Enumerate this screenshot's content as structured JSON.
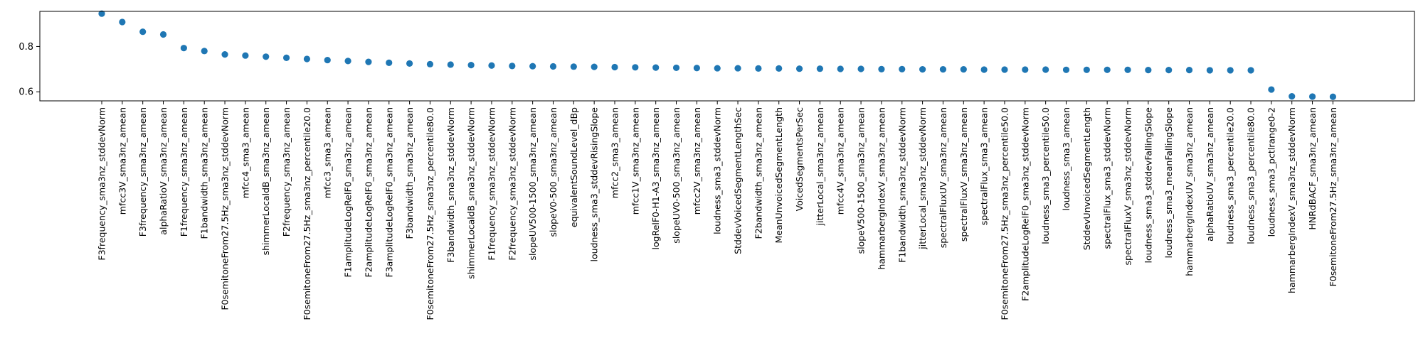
{
  "chart_data": {
    "type": "scatter",
    "title": "",
    "xlabel": "",
    "ylabel": "",
    "ylim": [
      0.56,
      0.955
    ],
    "yticks": [
      0.6,
      0.8
    ],
    "ytick_labels": [
      "0.6",
      "0.8"
    ],
    "grid": false,
    "marker_color": "#1f77b4",
    "categories": [
      "F3frequency_sma3nz_stddevNorm",
      "mfcc3V_sma3nz_amean",
      "F3frequency_sma3nz_amean",
      "alphaRatioV_sma3nz_amean",
      "F1frequency_sma3nz_amean",
      "F1bandwidth_sma3nz_amean",
      "F0semitoneFrom27.5Hz_sma3nz_stddevNorm",
      "mfcc4_sma3_amean",
      "shimmerLocaldB_sma3nz_amean",
      "F2frequency_sma3nz_amean",
      "F0semitoneFrom27.5Hz_sma3nz_percentile20.0",
      "mfcc3_sma3_amean",
      "F1amplitudeLogRelF0_sma3nz_amean",
      "F2amplitudeLogRelF0_sma3nz_amean",
      "F3amplitudeLogRelF0_sma3nz_amean",
      "F3bandwidth_sma3nz_amean",
      "F0semitoneFrom27.5Hz_sma3nz_percentile80.0",
      "F3bandwidth_sma3nz_stddevNorm",
      "shimmerLocaldB_sma3nz_stddevNorm",
      "F1frequency_sma3nz_stddevNorm",
      "F2frequency_sma3nz_stddevNorm",
      "slopeUV500-1500_sma3nz_amean",
      "slopeV0-500_sma3nz_amean",
      "equivalentSoundLevel_dBp",
      "loudness_sma3_stddevRisingSlope",
      "mfcc2_sma3_amean",
      "mfcc1V_sma3nz_amean",
      "logRelF0-H1-A3_sma3nz_amean",
      "slopeUV0-500_sma3nz_amean",
      "mfcc2V_sma3nz_amean",
      "loudness_sma3_stddevNorm",
      "StddevVoicedSegmentLengthSec",
      "F2bandwidth_sma3nz_amean",
      "MeanUnvoicedSegmentLength",
      "VoicedSegmentsPerSec",
      "jitterLocal_sma3nz_amean",
      "mfcc4V_sma3nz_amean",
      "slopeV500-1500_sma3nz_amean",
      "hammarbergIndexV_sma3nz_amean",
      "F1bandwidth_sma3nz_stddevNorm",
      "jitterLocal_sma3nz_stddevNorm",
      "spectralFluxUV_sma3nz_amean",
      "spectralFluxV_sma3nz_amean",
      "spectralFlux_sma3_amean",
      "F0semitoneFrom27.5Hz_sma3nz_percentile50.0",
      "F2amplitudeLogRelF0_sma3nz_stddevNorm",
      "loudness_sma3_percentile50.0",
      "loudness_sma3_amean",
      "StddevUnvoicedSegmentLength",
      "spectralFlux_sma3_stddevNorm",
      "spectralFluxV_sma3nz_stddevNorm",
      "loudness_sma3_stddevFallingSlope",
      "loudness_sma3_meanFallingSlope",
      "hammarbergIndexUV_sma3nz_amean",
      "alphaRatioUV_sma3nz_amean",
      "loudness_sma3_percentile20.0",
      "loudness_sma3_percentile80.0",
      "loudness_sma3_pctlrange0-2",
      "hammarbergIndexV_sma3nz_stddevNorm",
      "HNRdBACF_sma3nz_amean",
      "F0semitoneFrom27.5Hz_sma3nz_amean"
    ],
    "values": [
      0.945,
      0.908,
      0.865,
      0.853,
      0.793,
      0.78,
      0.765,
      0.76,
      0.755,
      0.75,
      0.745,
      0.74,
      0.736,
      0.732,
      0.728,
      0.725,
      0.722,
      0.72,
      0.718,
      0.716,
      0.714,
      0.713,
      0.712,
      0.711,
      0.71,
      0.709,
      0.708,
      0.707,
      0.706,
      0.705,
      0.704,
      0.704,
      0.703,
      0.703,
      0.702,
      0.702,
      0.701,
      0.701,
      0.7,
      0.7,
      0.699,
      0.699,
      0.699,
      0.698,
      0.698,
      0.698,
      0.698,
      0.697,
      0.697,
      0.697,
      0.697,
      0.696,
      0.696,
      0.696,
      0.695,
      0.695,
      0.695,
      0.61,
      0.58,
      0.579,
      0.578
    ]
  }
}
